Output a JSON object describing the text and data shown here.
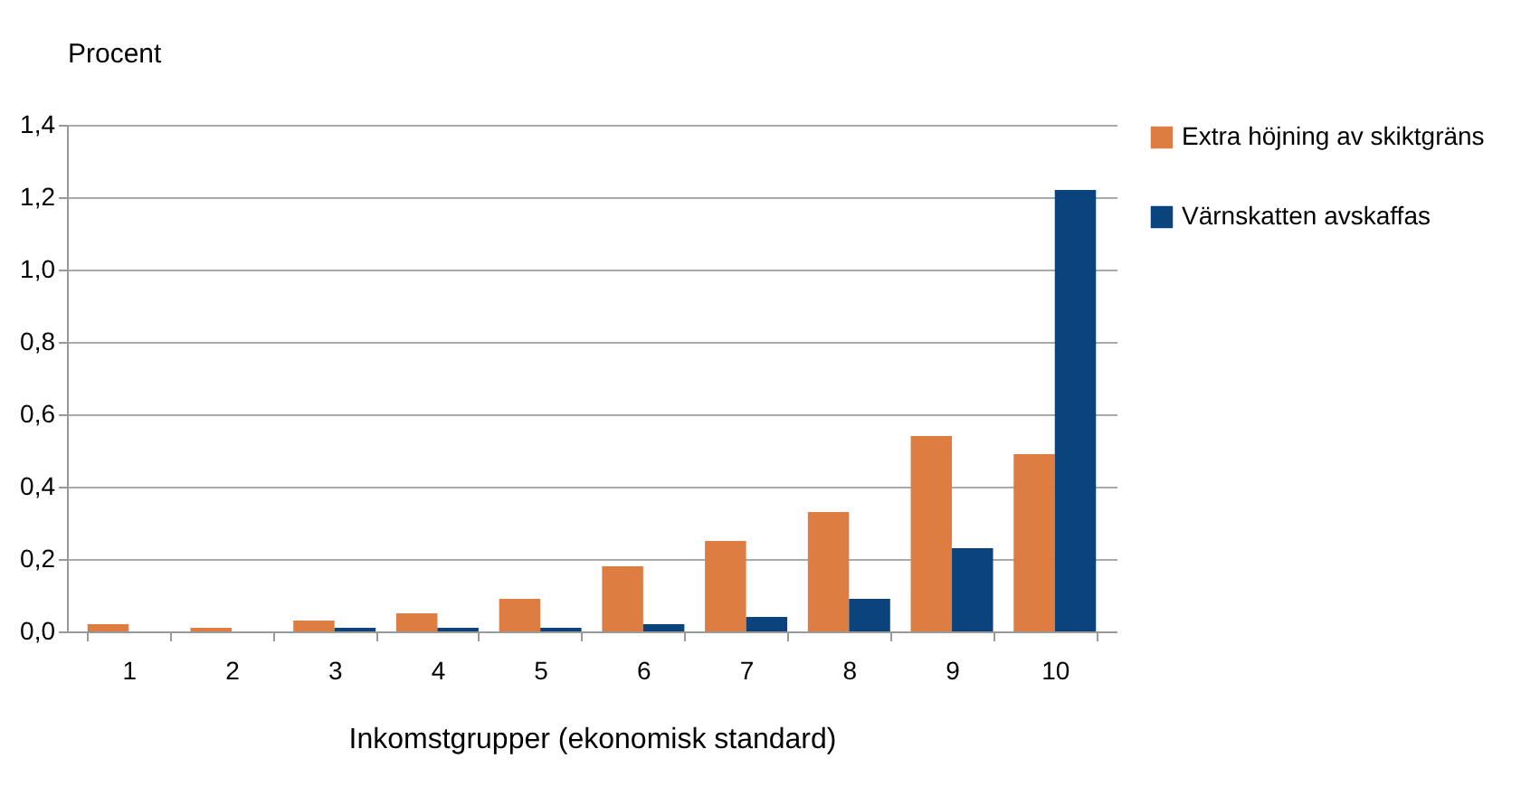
{
  "chart_data": {
    "type": "bar",
    "xlabel": "Inkomstgrupper (ekonomisk standard)",
    "ylabel": "Procent",
    "categories": [
      "1",
      "2",
      "3",
      "4",
      "5",
      "6",
      "7",
      "8",
      "9",
      "10"
    ],
    "series": [
      {
        "name": "Extra höjning av skiktgräns",
        "color": "#dd7d42",
        "values": [
          0.02,
          0.01,
          0.03,
          0.05,
          0.09,
          0.18,
          0.25,
          0.33,
          0.54,
          0.49
        ]
      },
      {
        "name": "Värnskatten avskaffas",
        "color": "#0b447c",
        "values": [
          0,
          0,
          0.01,
          0.01,
          0.01,
          0.02,
          0.04,
          0.09,
          0.23,
          1.22
        ]
      }
    ],
    "ylim": [
      0,
      1.4
    ],
    "yticks": [
      {
        "value": 0,
        "label": "0,0"
      },
      {
        "value": 0.2,
        "label": "0,2"
      },
      {
        "value": 0.4,
        "label": "0,4"
      },
      {
        "value": 0.6,
        "label": "0,6"
      },
      {
        "value": 0.8,
        "label": "0,8"
      },
      {
        "value": 1.0,
        "label": "1,0"
      },
      {
        "value": 1.2,
        "label": "1,2"
      },
      {
        "value": 1.4,
        "label": "1,4"
      }
    ],
    "grid": "y",
    "legend": "right"
  }
}
